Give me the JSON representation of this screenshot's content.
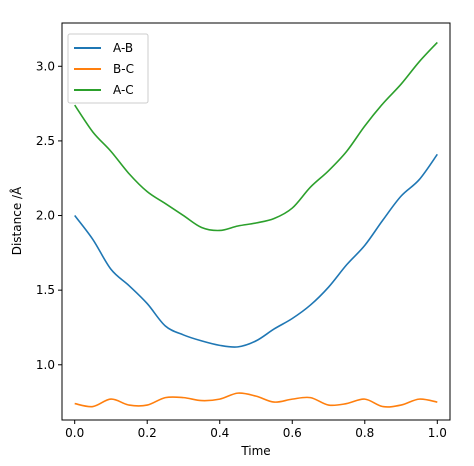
{
  "chart_data": {
    "type": "line",
    "title": "",
    "xlabel": "Time",
    "ylabel": "Distance /Å",
    "xlim": [
      -0.035,
      1.035
    ],
    "ylim": [
      0.63,
      3.29
    ],
    "xticks": [
      "0.0",
      "0.2",
      "0.4",
      "0.6",
      "0.8",
      "1.0"
    ],
    "yticks": [
      "1.0",
      "1.5",
      "2.0",
      "2.5",
      "3.0"
    ],
    "grid": false,
    "legend_position": "upper-left",
    "x": [
      0.0,
      0.05,
      0.1,
      0.15,
      0.2,
      0.25,
      0.3,
      0.35,
      0.4,
      0.45,
      0.5,
      0.55,
      0.6,
      0.65,
      0.7,
      0.75,
      0.8,
      0.85,
      0.9,
      0.95,
      1.0
    ],
    "series": [
      {
        "name": "A-B",
        "color": "#1f77b4",
        "values": [
          2.0,
          1.84,
          1.64,
          1.53,
          1.41,
          1.26,
          1.2,
          1.16,
          1.13,
          1.12,
          1.16,
          1.24,
          1.31,
          1.4,
          1.52,
          1.67,
          1.8,
          1.97,
          2.13,
          2.24,
          2.41
        ]
      },
      {
        "name": "B-C",
        "color": "#ff7f0e",
        "values": [
          0.74,
          0.72,
          0.77,
          0.73,
          0.73,
          0.78,
          0.78,
          0.76,
          0.77,
          0.81,
          0.79,
          0.75,
          0.77,
          0.78,
          0.73,
          0.74,
          0.77,
          0.72,
          0.73,
          0.77,
          0.75
        ]
      },
      {
        "name": "A-C",
        "color": "#2ca02c",
        "values": [
          2.74,
          2.56,
          2.43,
          2.28,
          2.16,
          2.08,
          2.0,
          1.92,
          1.9,
          1.93,
          1.95,
          1.98,
          2.05,
          2.19,
          2.3,
          2.43,
          2.6,
          2.75,
          2.88,
          3.03,
          3.16
        ]
      }
    ]
  }
}
